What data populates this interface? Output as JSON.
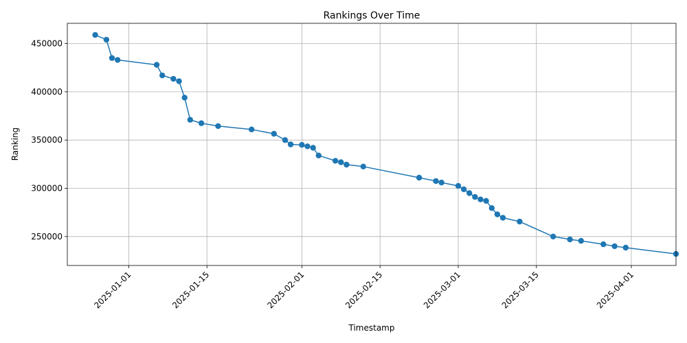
{
  "chart_data": {
    "type": "line",
    "title": "Rankings Over Time",
    "xlabel": "Timestamp",
    "ylabel": "Ranking",
    "grid": true,
    "legend": "none",
    "marker": "circle",
    "color": "#1f77b4",
    "xlim": [
      "2024-12-21",
      "2025-04-09"
    ],
    "ylim": [
      220000,
      471000
    ],
    "xticks": [
      "2025-01-01",
      "2025-01-15",
      "2025-02-01",
      "2025-02-15",
      "2025-03-01",
      "2025-03-15",
      "2025-04-01"
    ],
    "yticks": [
      250000,
      300000,
      350000,
      400000,
      450000
    ],
    "ytick_labels": [
      "250000",
      "300000",
      "350000",
      "400000",
      "450000"
    ],
    "series": [
      {
        "x": [
          "2024-12-26",
          "2024-12-28",
          "2024-12-29",
          "2024-12-30",
          "2025-01-06",
          "2025-01-07",
          "2025-01-09",
          "2025-01-10",
          "2025-01-11",
          "2025-01-12",
          "2025-01-14",
          "2025-01-17",
          "2025-01-23",
          "2025-01-27",
          "2025-01-29",
          "2025-01-30",
          "2025-02-01",
          "2025-02-02",
          "2025-02-03",
          "2025-02-04",
          "2025-02-07",
          "2025-02-08",
          "2025-02-09",
          "2025-02-12",
          "2025-02-22",
          "2025-02-25",
          "2025-02-26",
          "2025-03-01",
          "2025-03-02",
          "2025-03-03",
          "2025-03-04",
          "2025-03-05",
          "2025-03-06",
          "2025-03-07",
          "2025-03-08",
          "2025-03-09",
          "2025-03-12",
          "2025-03-18",
          "2025-03-21",
          "2025-03-23",
          "2025-03-27",
          "2025-03-29",
          "2025-03-31",
          "2025-04-09"
        ],
        "y": [
          459000,
          454000,
          435000,
          433000,
          428000,
          417000,
          413500,
          411000,
          394000,
          371000,
          367500,
          364500,
          361000,
          356500,
          350000,
          345500,
          345000,
          343500,
          342000,
          334000,
          328500,
          327000,
          324500,
          322500,
          311000,
          307500,
          306000,
          302500,
          299000,
          295000,
          291000,
          288500,
          287000,
          279500,
          273000,
          269500,
          265500,
          250000,
          247000,
          245500,
          242000,
          240000,
          238500,
          232000
        ]
      }
    ]
  }
}
